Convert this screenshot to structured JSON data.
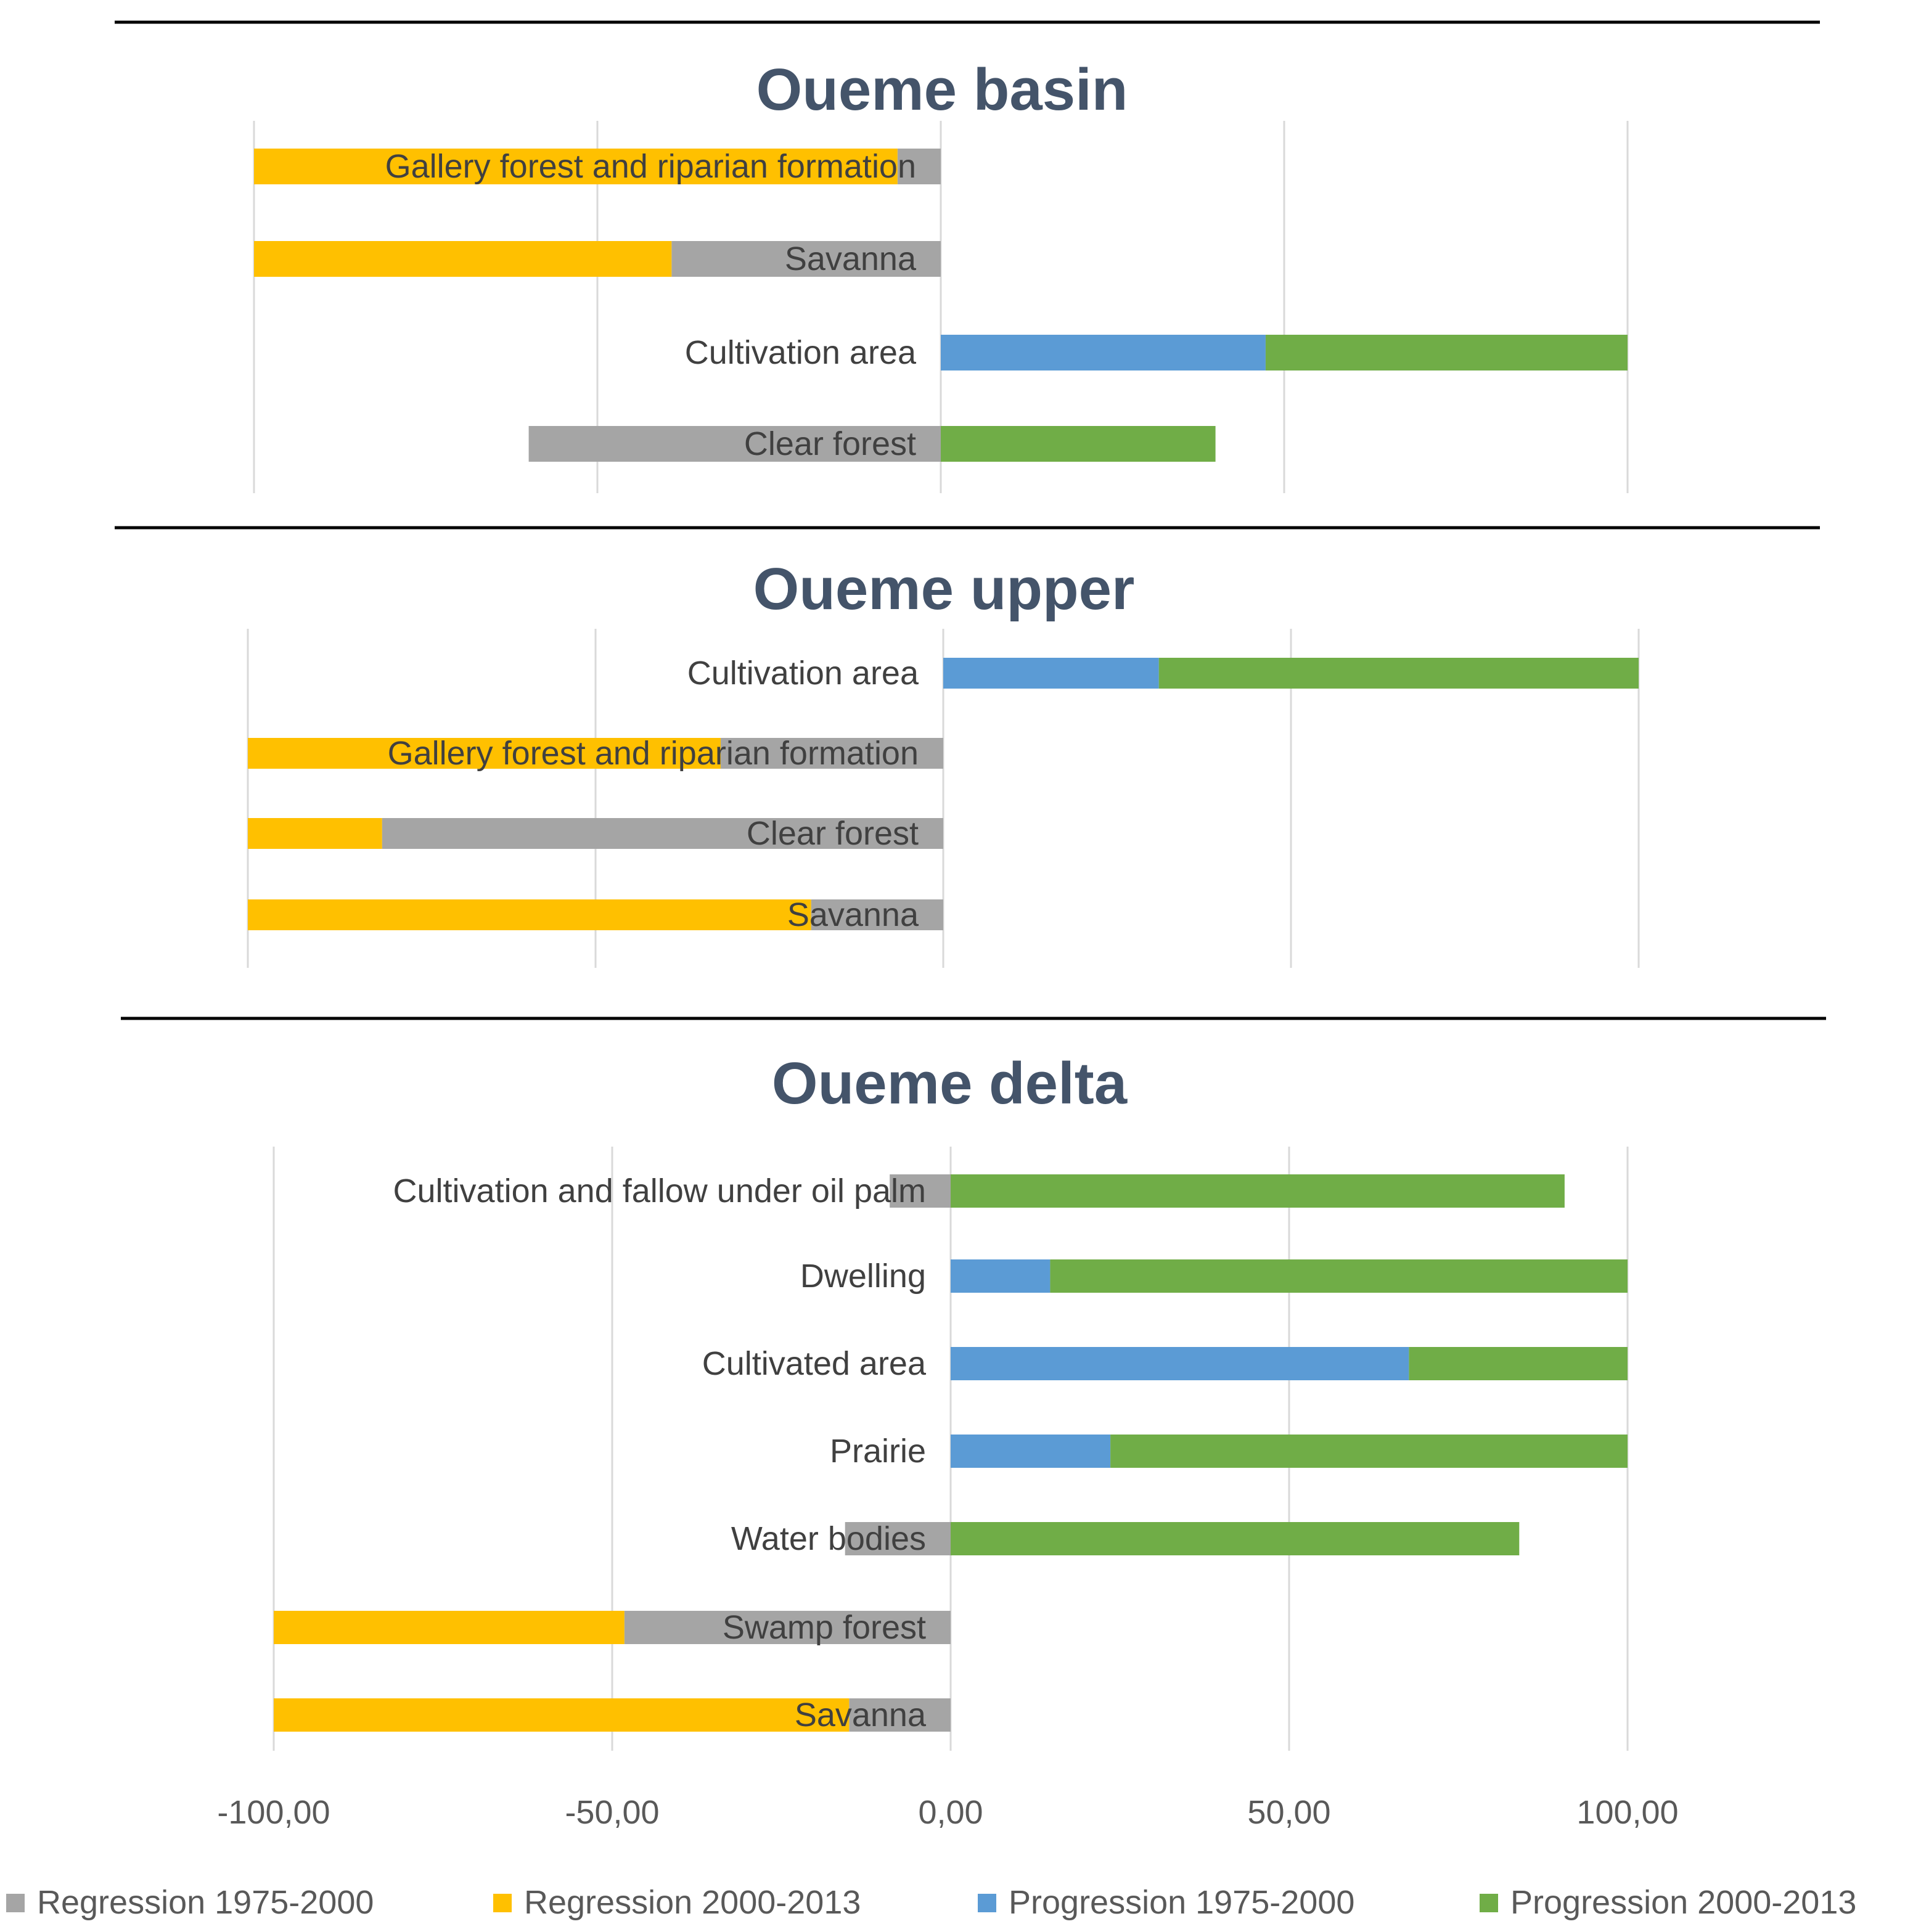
{
  "colors": {
    "regression_1975_2000": "#a5a5a5",
    "regression_2000_2013": "#ffc000",
    "progression_1975_2000": "#5b9bd5",
    "progression_2000_2013": "#70ad47",
    "title": "#44546a"
  },
  "chart_data": [
    {
      "type": "bar",
      "orientation": "horizontal",
      "stacked": true,
      "title": "Oueme basin",
      "categories": [
        "Gallery forest and riparian formation",
        "Savanna",
        "Cultivation area",
        "Clear forest"
      ],
      "series": [
        {
          "name": "Regression 1975-2000",
          "values": [
            -6.3,
            -39.2,
            0,
            -60.0
          ]
        },
        {
          "name": "Regression 2000-2013",
          "values": [
            -93.7,
            -60.8,
            0,
            0
          ]
        },
        {
          "name": "Progression 1975-2000",
          "values": [
            0,
            0,
            47.3,
            0
          ]
        },
        {
          "name": "Progression 2000-2013",
          "values": [
            0,
            0,
            52.7,
            40.0
          ]
        }
      ],
      "xlim": [
        -100,
        100
      ],
      "grid": true
    },
    {
      "type": "bar",
      "orientation": "horizontal",
      "stacked": true,
      "title": "Oueme upper",
      "categories": [
        "Cultivation area",
        "Gallery forest and riparian formation",
        "Clear forest",
        "Savanna"
      ],
      "series": [
        {
          "name": "Regression 1975-2000",
          "values": [
            0,
            -32.0,
            -80.7,
            -19.0
          ]
        },
        {
          "name": "Regression 2000-2013",
          "values": [
            0,
            -68.0,
            -19.3,
            -81.0
          ]
        },
        {
          "name": "Progression 1975-2000",
          "values": [
            31.0,
            0,
            0,
            0
          ]
        },
        {
          "name": "Progression 2000-2013",
          "values": [
            69.0,
            0,
            0,
            0
          ]
        }
      ],
      "xlim": [
        -100,
        100
      ],
      "grid": true
    },
    {
      "type": "bar",
      "orientation": "horizontal",
      "stacked": true,
      "title": "Oueme delta",
      "categories": [
        "Cultivation and fallow under oil palm",
        "Dwelling",
        "Cultivated area",
        "Prairie",
        "Water bodies",
        "Swamp forest",
        "Savanna"
      ],
      "series": [
        {
          "name": "Regression 1975-2000",
          "values": [
            -9.0,
            0,
            0,
            0,
            -15.6,
            -48.2,
            -15.0
          ]
        },
        {
          "name": "Regression 2000-2013",
          "values": [
            0,
            0,
            0,
            0,
            0,
            -51.8,
            -85.0
          ]
        },
        {
          "name": "Progression 1975-2000",
          "values": [
            0,
            14.7,
            67.7,
            23.6,
            0,
            0,
            0
          ]
        },
        {
          "name": "Progression 2000-2013",
          "values": [
            90.7,
            85.3,
            32.3,
            76.4,
            84.0,
            0,
            0
          ]
        }
      ],
      "xlim": [
        -100,
        100
      ],
      "xticks": [
        "-100,00",
        "-50,00",
        "0,00",
        "50,00",
        "100,00"
      ],
      "grid": true
    }
  ],
  "legend": {
    "placement": "bottom",
    "items": [
      "Regression 1975-2000",
      "Regression 2000-2013",
      "Progression 1975-2000",
      "Progression 2000-2013"
    ]
  }
}
